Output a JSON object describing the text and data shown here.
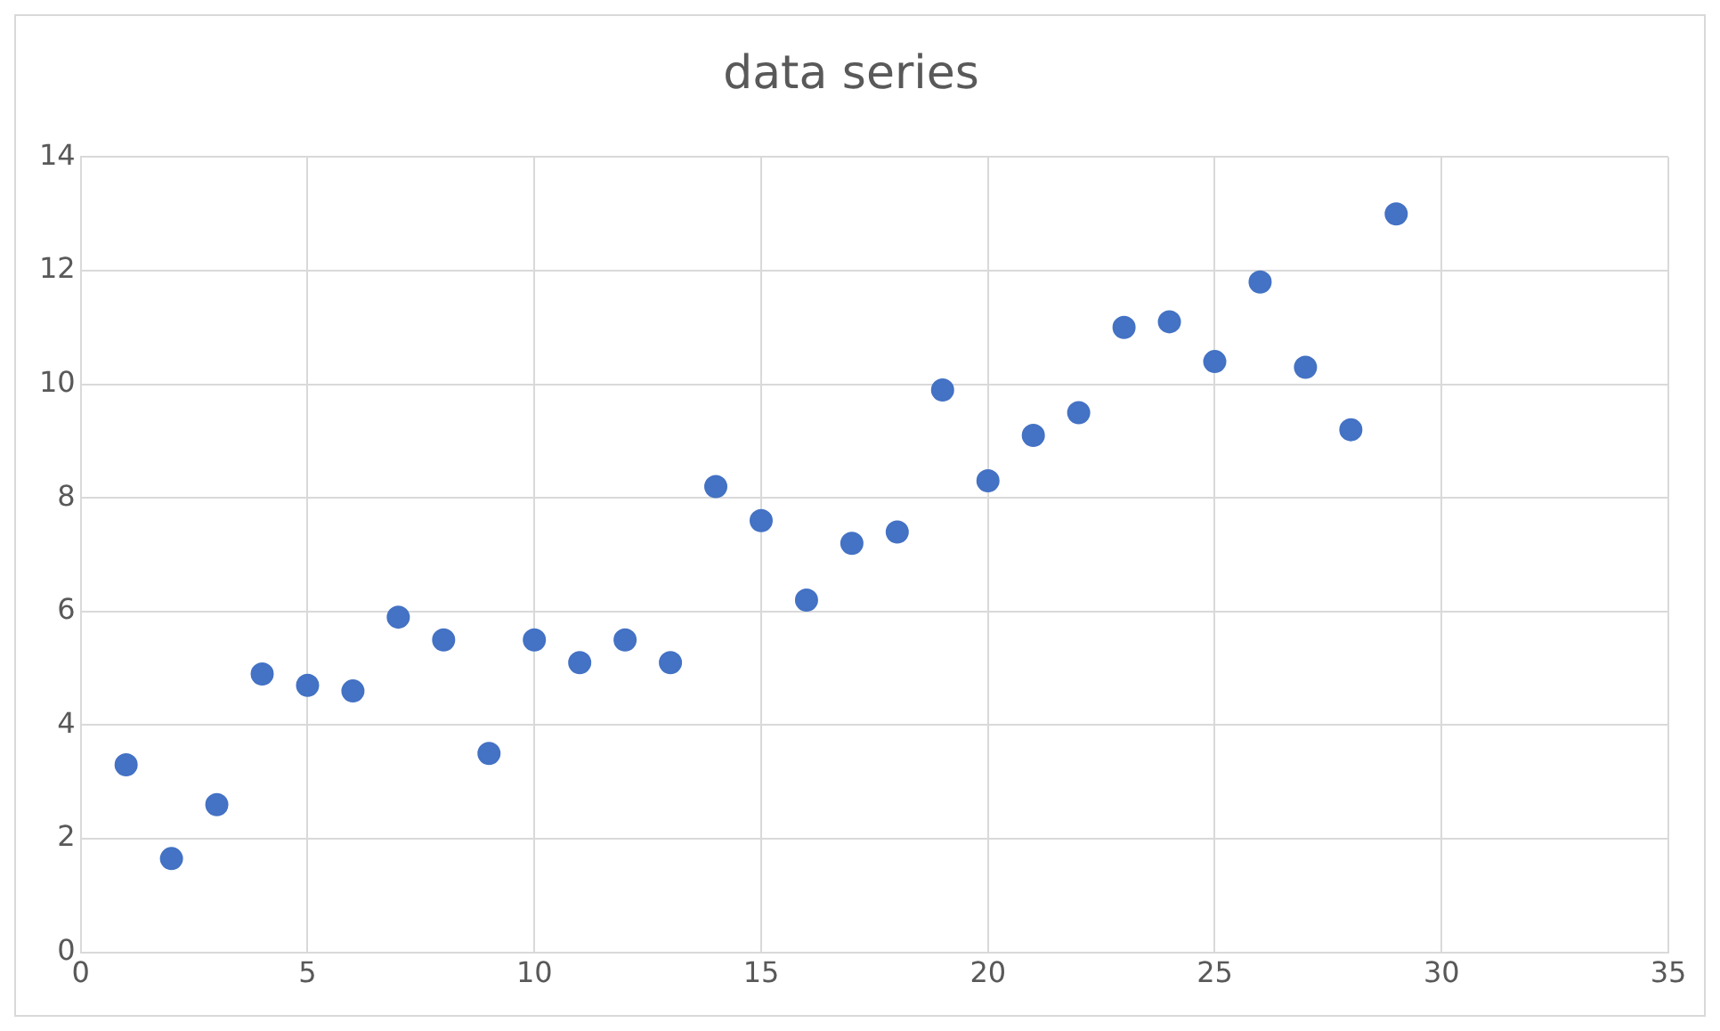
{
  "chart_data": {
    "type": "scatter",
    "title": "data series",
    "x": [
      1,
      2,
      3,
      4,
      5,
      6,
      7,
      8,
      9,
      10,
      11,
      12,
      13,
      14,
      15,
      16,
      17,
      18,
      19,
      20,
      21,
      22,
      23,
      24,
      25,
      26,
      27,
      28,
      29
    ],
    "series": [
      {
        "color": "#4472c4",
        "values": [
          3.3,
          1.65,
          2.6,
          4.9,
          4.7,
          4.6,
          5.9,
          5.5,
          3.5,
          5.5,
          5.1,
          5.5,
          5.1,
          8.2,
          7.6,
          6.2,
          7.2,
          7.4,
          9.9,
          8.3,
          9.1,
          9.5,
          11,
          11.1,
          10.4,
          11.8,
          10.3,
          9.2,
          13
        ]
      }
    ],
    "xlim": [
      0,
      35
    ],
    "xticks": [
      0,
      5,
      10,
      15,
      20,
      25,
      30,
      35
    ],
    "ylim": [
      0,
      14
    ],
    "yticks": [
      0,
      2,
      4,
      6,
      8,
      10,
      12,
      14
    ],
    "grid": true,
    "legend": false,
    "marker": "circle"
  }
}
